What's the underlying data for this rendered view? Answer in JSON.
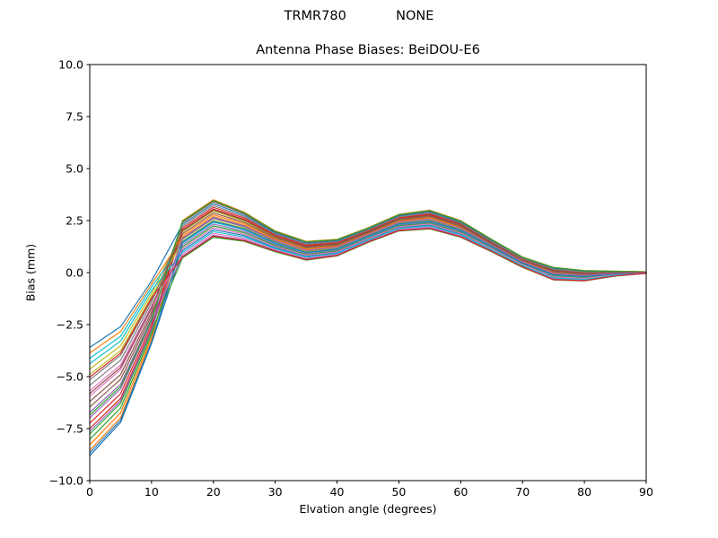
{
  "figure": {
    "suptitle": "TRMR780            NONE"
  },
  "chart_data": {
    "type": "line",
    "title": "Antenna Phase Biases: BeiDOU-E6",
    "xlabel": "Elvation angle (degrees)",
    "ylabel": "Bias (mm)",
    "xlim": [
      0,
      90
    ],
    "ylim": [
      -10,
      10
    ],
    "grid": false,
    "legend": "none",
    "xticks": [
      0,
      10,
      20,
      30,
      40,
      50,
      60,
      70,
      80,
      90
    ],
    "xtick_labels": [
      "0",
      "10",
      "20",
      "30",
      "40",
      "50",
      "60",
      "70",
      "80",
      "90"
    ],
    "ytick_values": [
      10,
      7.5,
      5,
      2.5,
      0,
      -2.5,
      -5,
      -7.5,
      -10
    ],
    "ytick_labels": [
      "10.0",
      "7.5",
      "5.0",
      "2.5",
      "0.0",
      "−2.5",
      "−5.0",
      "−7.5",
      "−10.0"
    ],
    "x": [
      0,
      5,
      10,
      15,
      20,
      25,
      30,
      35,
      40,
      45,
      50,
      55,
      60,
      65,
      70,
      75,
      80,
      85,
      90
    ],
    "series": [
      {
        "color": "#1f77b4",
        "values": [
          -8.8,
          -7.2,
          -3.4,
          1.06,
          2.06,
          1.78,
          1.2,
          0.78,
          0.96,
          1.59,
          2.16,
          2.28,
          1.86,
          1.12,
          0.35,
          -0.23,
          -0.3,
          -0.12,
          -0.02
        ]
      },
      {
        "color": "#ff7f0e",
        "values": [
          -8.28,
          -6.74,
          -3.1,
          1.78,
          2.78,
          2.34,
          1.6,
          1.14,
          1.28,
          1.87,
          2.48,
          2.64,
          2.18,
          1.36,
          0.55,
          0.01,
          -0.1,
          -0.03,
          0.01
        ]
      },
      {
        "color": "#2ca02c",
        "values": [
          -7.76,
          -6.28,
          -2.8,
          0.7,
          1.7,
          1.5,
          1.0,
          0.6,
          0.8,
          1.45,
          2.0,
          2.1,
          1.7,
          1.0,
          0.25,
          -0.35,
          -0.4,
          -0.17,
          -0.04
        ]
      },
      {
        "color": "#d62728",
        "values": [
          -7.24,
          -5.82,
          -2.5,
          2.14,
          3.14,
          2.62,
          1.8,
          1.32,
          1.44,
          2.01,
          2.64,
          2.82,
          2.34,
          1.48,
          0.65,
          0.13,
          0.0,
          0.02,
          0.02
        ]
      },
      {
        "color": "#9467bd",
        "values": [
          -6.72,
          -5.36,
          -2.2,
          1.33,
          2.33,
          1.99,
          1.35,
          0.92,
          1.08,
          1.7,
          2.28,
          2.42,
          1.98,
          1.21,
          0.43,
          -0.14,
          -0.23,
          -0.09,
          -0.01
        ]
      },
      {
        "color": "#8c564b",
        "values": [
          -6.2,
          -4.9,
          -1.9,
          2.41,
          3.41,
          2.83,
          1.95,
          1.46,
          1.56,
          2.12,
          2.76,
          2.96,
          2.46,
          1.57,
          0.73,
          0.22,
          0.08,
          0.06,
          0.04
        ]
      },
      {
        "color": "#e377c2",
        "values": [
          -5.68,
          -4.44,
          -1.6,
          0.88,
          1.88,
          1.64,
          1.1,
          0.69,
          0.88,
          1.52,
          2.08,
          2.19,
          1.78,
          1.06,
          0.3,
          -0.29,
          -0.35,
          -0.15,
          -0.03
        ]
      },
      {
        "color": "#7f7f7f",
        "values": [
          -5.16,
          -3.98,
          -1.3,
          1.6,
          2.6,
          2.2,
          1.5,
          1.05,
          1.2,
          1.8,
          2.4,
          2.55,
          2.1,
          1.3,
          0.5,
          -0.05,
          -0.15,
          -0.05,
          0.0
        ]
      },
      {
        "color": "#bcbd22",
        "values": [
          -4.64,
          -3.52,
          -1.0,
          1.96,
          2.96,
          2.48,
          1.7,
          1.23,
          1.36,
          1.94,
          2.56,
          2.73,
          2.26,
          1.42,
          0.6,
          0.07,
          -0.05,
          0.0,
          0.02
        ]
      },
      {
        "color": "#17becf",
        "values": [
          -4.12,
          -3.06,
          -0.7,
          1.42,
          2.42,
          2.06,
          1.4,
          0.96,
          1.12,
          1.73,
          2.32,
          2.46,
          2.02,
          1.24,
          0.45,
          -0.11,
          -0.2,
          -0.07,
          -0.01
        ]
      },
      {
        "color": "#1f77b4",
        "values": [
          -3.6,
          -2.6,
          -0.4,
          2.32,
          3.32,
          2.76,
          1.9,
          1.41,
          1.52,
          2.08,
          2.72,
          2.91,
          2.42,
          1.54,
          0.7,
          0.19,
          0.05,
          0.05,
          0.03
        ]
      },
      {
        "color": "#ff7f0e",
        "values": [
          -8.54,
          -6.97,
          -3.25,
          2.5,
          3.5,
          2.9,
          2.0,
          1.5,
          1.6,
          2.15,
          2.8,
          3.0,
          2.5,
          1.6,
          0.75,
          0.25,
          0.1,
          0.07,
          0.04
        ]
      },
      {
        "color": "#2ca02c",
        "values": [
          -8.02,
          -6.51,
          -2.95,
          1.24,
          2.24,
          1.92,
          1.3,
          0.87,
          1.04,
          1.66,
          2.24,
          2.37,
          1.94,
          1.18,
          0.4,
          -0.17,
          -0.25,
          -0.1,
          -0.02
        ]
      },
      {
        "color": "#d62728",
        "values": [
          -7.5,
          -6.05,
          -2.65,
          2.05,
          3.05,
          2.55,
          1.75,
          1.28,
          1.4,
          1.98,
          2.6,
          2.78,
          2.3,
          1.45,
          0.63,
          0.1,
          -0.03,
          0.01,
          0.02
        ]
      },
      {
        "color": "#9467bd",
        "values": [
          -6.98,
          -5.59,
          -2.35,
          0.79,
          1.79,
          1.57,
          1.05,
          0.65,
          0.84,
          1.49,
          2.04,
          2.15,
          1.74,
          1.03,
          0.28,
          -0.32,
          -0.38,
          -0.16,
          -0.04
        ]
      },
      {
        "color": "#8c564b",
        "values": [
          -6.46,
          -5.13,
          -2.05,
          1.87,
          2.87,
          2.41,
          1.65,
          1.19,
          1.32,
          1.91,
          2.52,
          2.69,
          2.22,
          1.39,
          0.58,
          0.04,
          -0.08,
          -0.01,
          0.01
        ]
      },
      {
        "color": "#e377c2",
        "values": [
          -5.94,
          -4.67,
          -1.75,
          1.15,
          2.15,
          1.85,
          1.25,
          0.83,
          1.0,
          1.63,
          2.2,
          2.33,
          1.9,
          1.15,
          0.38,
          -0.2,
          -0.28,
          -0.11,
          -0.02
        ]
      },
      {
        "color": "#7f7f7f",
        "values": [
          -5.42,
          -4.21,
          -1.45,
          2.23,
          3.23,
          2.69,
          1.85,
          1.37,
          1.48,
          2.05,
          2.68,
          2.87,
          2.38,
          1.51,
          0.68,
          0.16,
          0.03,
          0.03,
          0.03
        ]
      },
      {
        "color": "#bcbd22",
        "values": [
          -4.9,
          -3.75,
          -1.15,
          1.51,
          2.51,
          2.13,
          1.45,
          1.01,
          1.16,
          1.77,
          2.36,
          2.51,
          2.06,
          1.27,
          0.48,
          -0.08,
          -0.18,
          -0.06,
          0.0
        ]
      },
      {
        "color": "#17becf",
        "values": [
          -4.38,
          -3.29,
          -0.85,
          0.97,
          1.97,
          1.71,
          1.15,
          0.74,
          0.92,
          1.56,
          2.12,
          2.24,
          1.82,
          1.09,
          0.33,
          -0.26,
          -0.33,
          -0.13,
          -0.03
        ]
      },
      {
        "color": "#1f77b4",
        "values": [
          -8.67,
          -7.09,
          -3.33,
          1.47,
          2.47,
          2.1,
          1.43,
          0.98,
          1.14,
          1.75,
          2.34,
          2.48,
          2.04,
          1.26,
          0.46,
          -0.1,
          -0.19,
          -0.07,
          -0.01
        ]
      },
      {
        "color": "#ff7f0e",
        "values": [
          -3.86,
          -2.83,
          -0.55,
          1.69,
          2.69,
          2.27,
          1.55,
          1.1,
          1.24,
          1.84,
          2.44,
          2.6,
          2.14,
          1.33,
          0.53,
          -0.02,
          -0.13,
          -0.04,
          0.0
        ]
      },
      {
        "color": "#2ca02c",
        "values": [
          -6.85,
          -5.48,
          -2.28,
          2.46,
          3.46,
          2.87,
          1.98,
          1.48,
          1.58,
          2.13,
          2.78,
          2.98,
          2.48,
          1.59,
          0.74,
          0.24,
          0.09,
          0.06,
          0.04
        ]
      },
      {
        "color": "#d62728",
        "values": [
          -5.03,
          -3.87,
          -1.23,
          0.75,
          1.75,
          1.54,
          1.03,
          0.62,
          0.82,
          1.47,
          2.02,
          2.12,
          1.72,
          1.02,
          0.27,
          -0.34,
          -0.39,
          -0.16,
          -0.04
        ]
      },
      {
        "color": "#9467bd",
        "values": [
          -7.63,
          -6.17,
          -2.73,
          1.65,
          2.65,
          2.24,
          1.53,
          1.07,
          1.22,
          1.82,
          2.42,
          2.57,
          2.12,
          1.32,
          0.51,
          -0.04,
          -0.14,
          -0.04,
          0.0
        ]
      },
      {
        "color": "#8c564b",
        "values": [
          -5.81,
          -4.56,
          -1.68,
          2.01,
          3.01,
          2.52,
          1.73,
          1.25,
          1.38,
          1.96,
          2.58,
          2.75,
          2.28,
          1.44,
          0.61,
          0.09,
          -0.04,
          0.0,
          0.02
        ]
      }
    ]
  }
}
